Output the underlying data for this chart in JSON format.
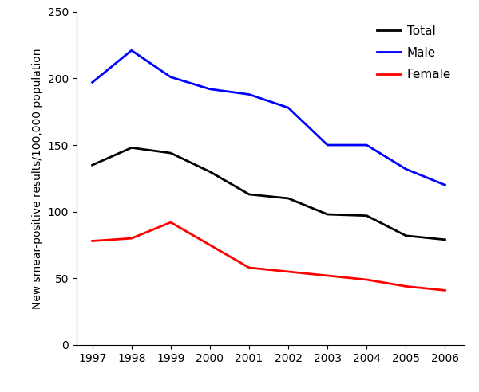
{
  "years": [
    1997,
    1998,
    1999,
    2000,
    2001,
    2002,
    2003,
    2004,
    2005,
    2006
  ],
  "total": [
    135,
    148,
    144,
    130,
    113,
    110,
    98,
    97,
    82,
    79
  ],
  "male": [
    197,
    221,
    201,
    192,
    188,
    178,
    150,
    150,
    132,
    120
  ],
  "female": [
    78,
    80,
    92,
    75,
    58,
    55,
    52,
    49,
    44,
    41
  ],
  "total_color": "#000000",
  "male_color": "#0000ff",
  "female_color": "#ff0000",
  "linewidth": 2.0,
  "ylabel": "New smear-positive results/100,000 population",
  "ylim": [
    0,
    250
  ],
  "yticks": [
    0,
    50,
    100,
    150,
    200,
    250
  ],
  "legend_labels": [
    "Total",
    "Male",
    "Female"
  ],
  "legend_loc": "upper right",
  "background_color": "#ffffff",
  "ylabel_fontsize": 10,
  "tick_fontsize": 10,
  "legend_fontsize": 11
}
